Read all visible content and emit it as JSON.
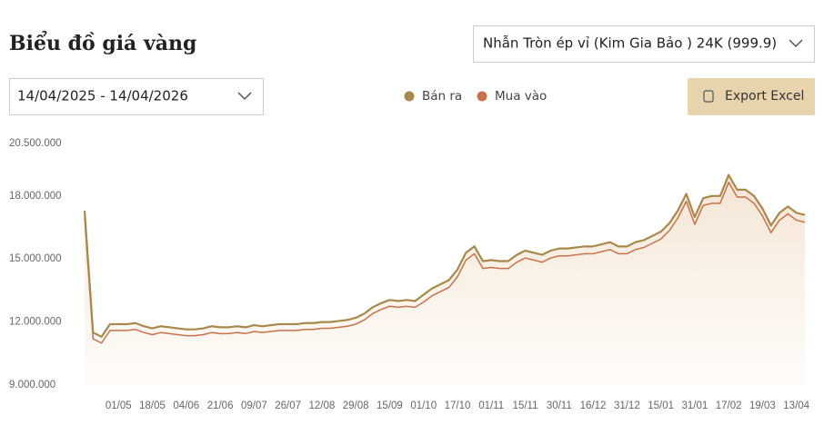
{
  "controls": {
    "product": "Nhẫn Tròn ép vỉ (Kim Gia Bảo ) 24K (999.9)",
    "date_range": "14/04/2025 - 14/04/2026",
    "export": "Export Excel"
  },
  "chart_data": {
    "type": "line",
    "title": "Biểu đồ giá vàng",
    "area": true,
    "grid": false,
    "ylim": [
      9000000,
      20500000
    ],
    "yticks": [
      {
        "value": 9000000,
        "label": "9.000.000"
      },
      {
        "value": 12000000,
        "label": "12.000.000"
      },
      {
        "value": 15000000,
        "label": "15.000.000"
      },
      {
        "value": 18000000,
        "label": "18.000.000"
      },
      {
        "value": 20500000,
        "label": "20.500.000"
      }
    ],
    "categories": [
      null,
      null,
      null,
      null,
      "01/05",
      null,
      null,
      null,
      "18/05",
      null,
      null,
      null,
      "04/06",
      null,
      null,
      null,
      "21/06",
      null,
      null,
      null,
      "09/07",
      null,
      null,
      null,
      "26/07",
      null,
      null,
      null,
      "12/08",
      null,
      null,
      null,
      "29/08",
      null,
      null,
      null,
      "15/09",
      null,
      null,
      null,
      "01/10",
      null,
      null,
      null,
      "17/10",
      null,
      null,
      null,
      "01/11",
      null,
      null,
      null,
      "15/11",
      null,
      null,
      null,
      "30/11",
      null,
      null,
      null,
      "16/12",
      null,
      null,
      null,
      "31/12",
      null,
      null,
      null,
      "15/01",
      null,
      null,
      null,
      "31/01",
      null,
      null,
      null,
      "17/02",
      null,
      null,
      null,
      "19/03",
      null,
      null,
      null,
      "13/04",
      null
    ],
    "series": [
      {
        "name": "Bán ra",
        "color": "#a8894c",
        "values": [
          17300000,
          11500000,
          11300000,
          11900000,
          11900000,
          11900000,
          11950000,
          11800000,
          11700000,
          11800000,
          11750000,
          11700000,
          11650000,
          11650000,
          11700000,
          11800000,
          11750000,
          11750000,
          11800000,
          11750000,
          11850000,
          11800000,
          11850000,
          11900000,
          11900000,
          11900000,
          11950000,
          11950000,
          12000000,
          12000000,
          12050000,
          12100000,
          12200000,
          12400000,
          12700000,
          12900000,
          13050000,
          13000000,
          13050000,
          13000000,
          13300000,
          13600000,
          13800000,
          14000000,
          14500000,
          15300000,
          15600000,
          14900000,
          14950000,
          14900000,
          14900000,
          15200000,
          15400000,
          15300000,
          15200000,
          15400000,
          15500000,
          15500000,
          15550000,
          15600000,
          15600000,
          15700000,
          15800000,
          15600000,
          15600000,
          15800000,
          15900000,
          16100000,
          16300000,
          16700000,
          17300000,
          18100000,
          17000000,
          17900000,
          18000000,
          18000000,
          19000000,
          18300000,
          18300000,
          18000000,
          17400000,
          16600000,
          17200000,
          17500000,
          17200000,
          17100000
        ]
      },
      {
        "name": "Mua vào",
        "color": "#c8724c",
        "values": [
          17000000,
          11200000,
          11000000,
          11600000,
          11600000,
          11600000,
          11650000,
          11500000,
          11400000,
          11500000,
          11450000,
          11400000,
          11350000,
          11350000,
          11400000,
          11500000,
          11450000,
          11450000,
          11500000,
          11450000,
          11550000,
          11500000,
          11550000,
          11600000,
          11600000,
          11600000,
          11650000,
          11650000,
          11700000,
          11700000,
          11750000,
          11800000,
          11900000,
          12100000,
          12400000,
          12600000,
          12750000,
          12700000,
          12750000,
          12700000,
          12950000,
          13250000,
          13450000,
          13650000,
          14150000,
          14950000,
          15250000,
          14550000,
          14600000,
          14550000,
          14550000,
          14850000,
          15050000,
          14950000,
          14850000,
          15050000,
          15150000,
          15150000,
          15200000,
          15250000,
          15250000,
          15350000,
          15450000,
          15250000,
          15250000,
          15450000,
          15550000,
          15750000,
          15950000,
          16350000,
          16950000,
          17750000,
          16650000,
          17550000,
          17650000,
          17650000,
          18650000,
          17950000,
          17950000,
          17650000,
          17050000,
          16250000,
          16850000,
          17150000,
          16850000,
          16750000
        ]
      }
    ]
  }
}
